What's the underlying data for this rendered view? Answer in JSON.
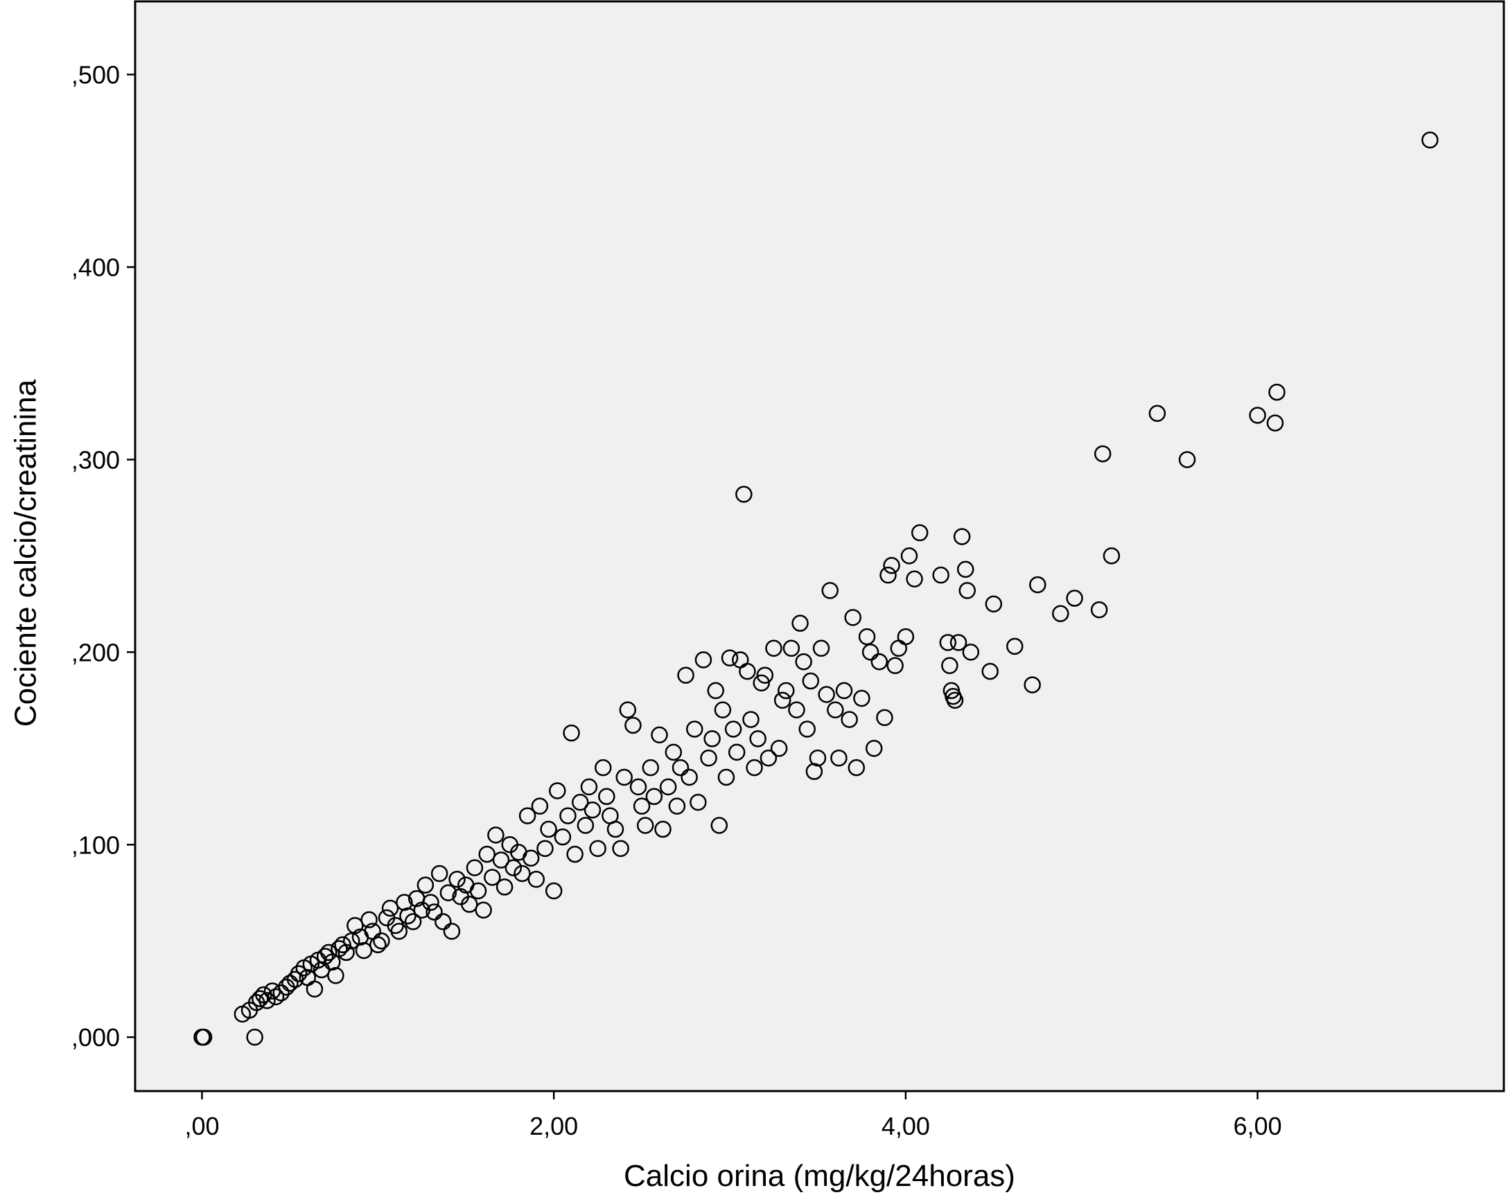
{
  "chart_data": {
    "type": "scatter",
    "title": "",
    "xlabel": "Calcio orina (mg/kg/24horas)",
    "ylabel": "Cociente calcio/creatinina",
    "xlim": [
      -0.38,
      7.4
    ],
    "ylim": [
      -0.028,
      0.538
    ],
    "x_ticks": [
      {
        "value": 0,
        "label": ",00"
      },
      {
        "value": 2,
        "label": "2,00"
      },
      {
        "value": 4,
        "label": "4,00"
      },
      {
        "value": 6,
        "label": "6,00"
      }
    ],
    "y_ticks": [
      {
        "value": 0.0,
        "label": ",000"
      },
      {
        "value": 0.1,
        "label": ",100"
      },
      {
        "value": 0.2,
        "label": ",200"
      },
      {
        "value": 0.3,
        "label": ",300"
      },
      {
        "value": 0.4,
        "label": ",400"
      },
      {
        "value": 0.5,
        "label": ",500"
      }
    ],
    "grid": false,
    "marker": "open-circle",
    "colors": {
      "plot_background": "#f0f0f0",
      "marker_stroke": "#000000",
      "axis": "#000000"
    },
    "series": [
      {
        "points": [
          [
            0.0,
            0.0
          ],
          [
            0.01,
            0.0
          ],
          [
            0.3,
            0.0
          ],
          [
            0.23,
            0.012
          ],
          [
            0.27,
            0.014
          ],
          [
            0.31,
            0.018
          ],
          [
            0.33,
            0.02
          ],
          [
            0.35,
            0.022
          ],
          [
            0.37,
            0.019
          ],
          [
            0.4,
            0.024
          ],
          [
            0.42,
            0.021
          ],
          [
            0.45,
            0.023
          ],
          [
            0.48,
            0.026
          ],
          [
            0.5,
            0.028
          ],
          [
            0.53,
            0.03
          ],
          [
            0.55,
            0.033
          ],
          [
            0.58,
            0.036
          ],
          [
            0.6,
            0.031
          ],
          [
            0.62,
            0.038
          ],
          [
            0.64,
            0.025
          ],
          [
            0.66,
            0.04
          ],
          [
            0.68,
            0.035
          ],
          [
            0.7,
            0.042
          ],
          [
            0.72,
            0.044
          ],
          [
            0.74,
            0.039
          ],
          [
            0.76,
            0.032
          ],
          [
            0.78,
            0.046
          ],
          [
            0.8,
            0.048
          ],
          [
            0.82,
            0.044
          ],
          [
            0.85,
            0.05
          ],
          [
            0.87,
            0.058
          ],
          [
            0.9,
            0.052
          ],
          [
            0.92,
            0.045
          ],
          [
            0.95,
            0.061
          ],
          [
            0.97,
            0.055
          ],
          [
            1.0,
            0.048
          ],
          [
            1.02,
            0.05
          ],
          [
            1.05,
            0.062
          ],
          [
            1.07,
            0.067
          ],
          [
            1.1,
            0.058
          ],
          [
            1.12,
            0.055
          ],
          [
            1.15,
            0.07
          ],
          [
            1.17,
            0.063
          ],
          [
            1.2,
            0.06
          ],
          [
            1.22,
            0.072
          ],
          [
            1.25,
            0.066
          ],
          [
            1.27,
            0.079
          ],
          [
            1.3,
            0.07
          ],
          [
            1.32,
            0.065
          ],
          [
            1.35,
            0.085
          ],
          [
            1.37,
            0.06
          ],
          [
            1.4,
            0.075
          ],
          [
            1.42,
            0.055
          ],
          [
            1.45,
            0.082
          ],
          [
            1.47,
            0.073
          ],
          [
            1.5,
            0.079
          ],
          [
            1.52,
            0.069
          ],
          [
            1.55,
            0.088
          ],
          [
            1.57,
            0.076
          ],
          [
            1.6,
            0.066
          ],
          [
            1.62,
            0.095
          ],
          [
            1.65,
            0.083
          ],
          [
            1.67,
            0.105
          ],
          [
            1.7,
            0.092
          ],
          [
            1.72,
            0.078
          ],
          [
            1.75,
            0.1
          ],
          [
            1.77,
            0.088
          ],
          [
            1.8,
            0.096
          ],
          [
            1.82,
            0.085
          ],
          [
            1.85,
            0.115
          ],
          [
            1.87,
            0.093
          ],
          [
            1.9,
            0.082
          ],
          [
            1.92,
            0.12
          ],
          [
            1.95,
            0.098
          ],
          [
            1.97,
            0.108
          ],
          [
            2.0,
            0.076
          ],
          [
            2.02,
            0.128
          ],
          [
            2.05,
            0.104
          ],
          [
            2.08,
            0.115
          ],
          [
            2.1,
            0.158
          ],
          [
            2.12,
            0.095
          ],
          [
            2.15,
            0.122
          ],
          [
            2.18,
            0.11
          ],
          [
            2.2,
            0.13
          ],
          [
            2.22,
            0.118
          ],
          [
            2.25,
            0.098
          ],
          [
            2.28,
            0.14
          ],
          [
            2.3,
            0.125
          ],
          [
            2.32,
            0.115
          ],
          [
            2.35,
            0.108
          ],
          [
            2.38,
            0.098
          ],
          [
            2.4,
            0.135
          ],
          [
            2.42,
            0.17
          ],
          [
            2.45,
            0.162
          ],
          [
            2.48,
            0.13
          ],
          [
            2.5,
            0.12
          ],
          [
            2.52,
            0.11
          ],
          [
            2.55,
            0.14
          ],
          [
            2.57,
            0.125
          ],
          [
            2.6,
            0.157
          ],
          [
            2.62,
            0.108
          ],
          [
            2.65,
            0.13
          ],
          [
            2.68,
            0.148
          ],
          [
            2.7,
            0.12
          ],
          [
            2.72,
            0.14
          ],
          [
            2.75,
            0.188
          ],
          [
            2.77,
            0.135
          ],
          [
            2.8,
            0.16
          ],
          [
            2.82,
            0.122
          ],
          [
            2.85,
            0.196
          ],
          [
            2.88,
            0.145
          ],
          [
            2.9,
            0.155
          ],
          [
            2.92,
            0.18
          ],
          [
            2.94,
            0.11
          ],
          [
            2.96,
            0.17
          ],
          [
            2.98,
            0.135
          ],
          [
            3.0,
            0.197
          ],
          [
            3.02,
            0.16
          ],
          [
            3.04,
            0.148
          ],
          [
            3.06,
            0.196
          ],
          [
            3.08,
            0.282
          ],
          [
            3.1,
            0.19
          ],
          [
            3.12,
            0.165
          ],
          [
            3.14,
            0.14
          ],
          [
            3.16,
            0.155
          ],
          [
            3.18,
            0.184
          ],
          [
            3.2,
            0.188
          ],
          [
            3.22,
            0.145
          ],
          [
            3.25,
            0.202
          ],
          [
            3.28,
            0.15
          ],
          [
            3.3,
            0.175
          ],
          [
            3.32,
            0.18
          ],
          [
            3.35,
            0.202
          ],
          [
            3.38,
            0.17
          ],
          [
            3.4,
            0.215
          ],
          [
            3.42,
            0.195
          ],
          [
            3.44,
            0.16
          ],
          [
            3.46,
            0.185
          ],
          [
            3.48,
            0.138
          ],
          [
            3.5,
            0.145
          ],
          [
            3.52,
            0.202
          ],
          [
            3.55,
            0.178
          ],
          [
            3.57,
            0.232
          ],
          [
            3.6,
            0.17
          ],
          [
            3.62,
            0.145
          ],
          [
            3.65,
            0.18
          ],
          [
            3.68,
            0.165
          ],
          [
            3.7,
            0.218
          ],
          [
            3.72,
            0.14
          ],
          [
            3.75,
            0.176
          ],
          [
            3.78,
            0.208
          ],
          [
            3.8,
            0.2
          ],
          [
            3.82,
            0.15
          ],
          [
            3.85,
            0.195
          ],
          [
            3.88,
            0.166
          ],
          [
            3.9,
            0.24
          ],
          [
            3.92,
            0.245
          ],
          [
            3.94,
            0.193
          ],
          [
            3.96,
            0.202
          ],
          [
            4.0,
            0.208
          ],
          [
            4.02,
            0.25
          ],
          [
            4.05,
            0.238
          ],
          [
            4.08,
            0.262
          ],
          [
            4.2,
            0.24
          ],
          [
            4.24,
            0.205
          ],
          [
            4.25,
            0.193
          ],
          [
            4.26,
            0.18
          ],
          [
            4.27,
            0.177
          ],
          [
            4.28,
            0.175
          ],
          [
            4.3,
            0.205
          ],
          [
            4.32,
            0.26
          ],
          [
            4.34,
            0.243
          ],
          [
            4.35,
            0.232
          ],
          [
            4.37,
            0.2
          ],
          [
            4.48,
            0.19
          ],
          [
            4.5,
            0.225
          ],
          [
            4.62,
            0.203
          ],
          [
            4.72,
            0.183
          ],
          [
            4.75,
            0.235
          ],
          [
            4.88,
            0.22
          ],
          [
            4.96,
            0.228
          ],
          [
            5.1,
            0.222
          ],
          [
            5.12,
            0.303
          ],
          [
            5.17,
            0.25
          ],
          [
            5.43,
            0.324
          ],
          [
            5.6,
            0.3
          ],
          [
            6.0,
            0.323
          ],
          [
            6.1,
            0.319
          ],
          [
            6.11,
            0.335
          ],
          [
            6.98,
            0.466
          ]
        ]
      }
    ]
  }
}
